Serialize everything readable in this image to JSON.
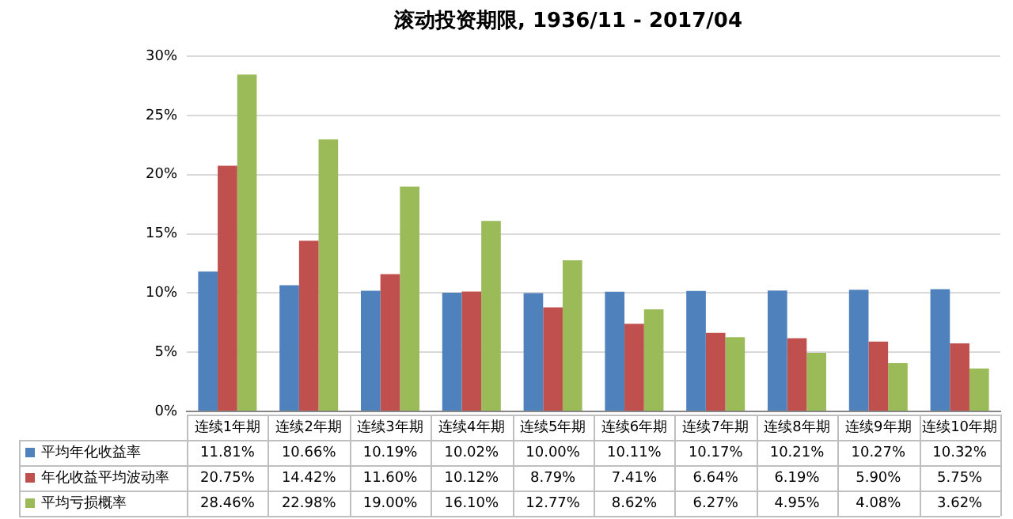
{
  "chart_data": {
    "type": "bar",
    "title": "滚动投资期限, 1936/11 - 2017/04",
    "categories": [
      "连续1年期",
      "连续2年期",
      "连续3年期",
      "连续4年期",
      "连续5年期",
      "连续6年期",
      "连续7年期",
      "连续8年期",
      "连续9年期",
      "连续10年期"
    ],
    "series": [
      {
        "name": "平均年化收益率",
        "color": "#4f81bd",
        "values": [
          11.81,
          10.66,
          10.19,
          10.02,
          10.0,
          10.11,
          10.17,
          10.21,
          10.27,
          10.32
        ],
        "value_labels": [
          "11.81%",
          "10.66%",
          "10.19%",
          "10.02%",
          "10.00%",
          "10.11%",
          "10.17%",
          "10.21%",
          "10.27%",
          "10.32%"
        ]
      },
      {
        "name": "年化收益平均波动率",
        "color": "#c0504d",
        "values": [
          20.75,
          14.42,
          11.6,
          10.12,
          8.79,
          7.41,
          6.64,
          6.19,
          5.9,
          5.75
        ],
        "value_labels": [
          "20.75%",
          "14.42%",
          "11.60%",
          "10.12%",
          "8.79%",
          "7.41%",
          "6.64%",
          "6.19%",
          "5.90%",
          "5.75%"
        ]
      },
      {
        "name": "平均亏损概率",
        "color": "#9bbb59",
        "values": [
          28.46,
          22.98,
          19.0,
          16.1,
          12.77,
          8.62,
          6.27,
          4.95,
          4.08,
          3.62
        ],
        "value_labels": [
          "28.46%",
          "22.98%",
          "19.00%",
          "16.10%",
          "12.77%",
          "8.62%",
          "6.27%",
          "4.95%",
          "4.08%",
          "3.62%"
        ]
      }
    ],
    "ylim": [
      0,
      30
    ],
    "yticks": [
      {
        "value": 0,
        "label": "0%"
      },
      {
        "value": 5,
        "label": "5%"
      },
      {
        "value": 10,
        "label": "10%"
      },
      {
        "value": 15,
        "label": "15%"
      },
      {
        "value": 20,
        "label": "20%"
      },
      {
        "value": 25,
        "label": "25%"
      },
      {
        "value": 30,
        "label": "30%"
      }
    ],
    "grid": "y",
    "legend": "bottom"
  }
}
